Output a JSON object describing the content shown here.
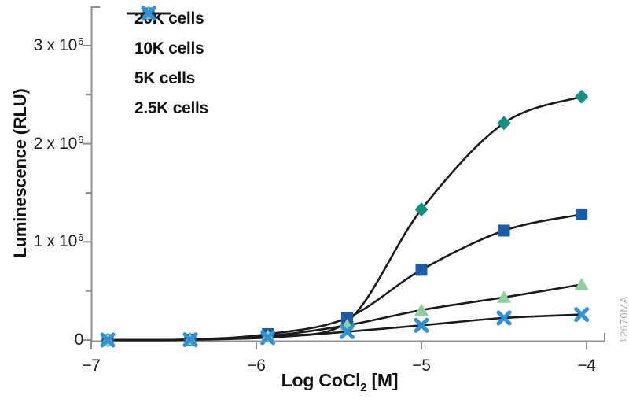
{
  "figure": {
    "watermark": "12670MA",
    "background": "#ffffff"
  },
  "chart_data": {
    "type": "line",
    "title": "",
    "ylabel": "Luminescence (RLU)",
    "xlabel": {
      "pre": "Log CoCl",
      "sub": "2",
      "post": "[M]"
    },
    "xlim": [
      -7.03,
      -3.88
    ],
    "ylim": [
      0,
      3400000
    ],
    "grid": false,
    "legend_position": "top-left",
    "x_log_m": [
      -6.9,
      -6.4,
      -5.93,
      -5.45,
      -5.0,
      -4.5,
      -4.03
    ],
    "x_ticks": [
      {
        "value": -7,
        "label": "−7"
      },
      {
        "value": -6,
        "label": "−6"
      },
      {
        "value": -5,
        "label": "−5"
      },
      {
        "value": -4,
        "label": "−4"
      }
    ],
    "y_ticks": [
      {
        "value": 0,
        "base": "0",
        "exp": ""
      },
      {
        "value": 1000000,
        "base": "1 x 10",
        "exp": "6"
      },
      {
        "value": 2000000,
        "base": "2 x 10",
        "exp": "6"
      },
      {
        "value": 3000000,
        "base": "3 x 10",
        "exp": "6"
      }
    ],
    "y_minor_ticks": [
      500000,
      1500000,
      2500000
    ],
    "series": [
      {
        "name": "20K cells",
        "marker": "diamond",
        "color": "#0f9082",
        "values": [
          0,
          5000,
          45000,
          185000,
          1330000,
          2210000,
          2480000
        ]
      },
      {
        "name": "10K cells",
        "marker": "square",
        "color": "#1a5ca9",
        "values": [
          0,
          5000,
          60000,
          225000,
          715000,
          1115000,
          1280000
        ]
      },
      {
        "name": "5K cells",
        "marker": "triangle",
        "color": "#90ce9b",
        "values": [
          0,
          5000,
          40000,
          150000,
          305000,
          435000,
          565000
        ]
      },
      {
        "name": "2.5K cells",
        "marker": "x",
        "color": "#2e92d8",
        "values": [
          0,
          3000,
          25000,
          85000,
          150000,
          225000,
          260000
        ]
      }
    ],
    "line_color": "#1a1a1a",
    "axis_color": "#8f8f8f",
    "text_color": "#1d1d1b",
    "watermark_color": "#b2b2b2"
  }
}
